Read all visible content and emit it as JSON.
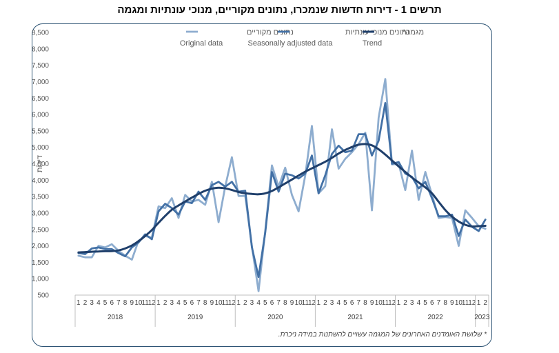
{
  "title": "תרשים 1 - דירות חדשות שנמכרו, נתונים מקוריים, מנוכי עונתיות ומגמה",
  "footnote": "* שלושת האומדנים האחרונים של המגמה עשויים להשתנות במידה ניכרת.",
  "chart_data": {
    "type": "line",
    "title": "תרשים 1 - דירות חדשות שנמכרו, נתונים מקוריים, מנוכי עונתיות ומגמה",
    "ylabel": "דירות",
    "xlabel": "",
    "ylim": [
      500,
      8500
    ],
    "yticks": [
      "500",
      "1,000",
      "1,500",
      "2,000",
      "2,500",
      "3,000",
      "3,500",
      "4,000",
      "4,500",
      "5,000",
      "5,500",
      "6,000",
      "6,500",
      "7,000",
      "7,500",
      "8,000",
      "8,500"
    ],
    "grid": false,
    "legend_position": "top",
    "x_month_labels": [
      "1",
      "2",
      "3",
      "4",
      "5",
      "6",
      "7",
      "8",
      "9",
      "10",
      "11",
      "12",
      "1",
      "2",
      "3",
      "4",
      "5",
      "6",
      "7",
      "8",
      "9",
      "10",
      "11",
      "12",
      "1",
      "2",
      "3",
      "4",
      "5",
      "6",
      "7",
      "8",
      "9",
      "10",
      "11",
      "12",
      "1",
      "2",
      "3",
      "4",
      "5",
      "6",
      "7",
      "8",
      "9",
      "10",
      "11",
      "12",
      "1",
      "2",
      "3",
      "4",
      "5",
      "6",
      "7",
      "8",
      "9",
      "10",
      "11",
      "12",
      "1",
      "2"
    ],
    "years": [
      {
        "label": "2018",
        "months": 12
      },
      {
        "label": "2019",
        "months": 12
      },
      {
        "label": "2020",
        "months": 12
      },
      {
        "label": "2021",
        "months": 12
      },
      {
        "label": "2022",
        "months": 12
      },
      {
        "label": "2023",
        "months": 2
      }
    ],
    "series": [
      {
        "name": "נתונים מקוריים",
        "name_en": "Original data",
        "color": "#8eadcf",
        "width": 2.8,
        "values": [
          1700,
          1650,
          1650,
          2000,
          1950,
          2050,
          1850,
          1700,
          1580,
          2150,
          2300,
          2250,
          3200,
          3150,
          3450,
          2850,
          3550,
          3350,
          3400,
          3250,
          3950,
          2720,
          3800,
          4700,
          3520,
          3520,
          1980,
          620,
          2450,
          4450,
          3800,
          4380,
          3550,
          3050,
          4150,
          5650,
          3600,
          3820,
          5550,
          4350,
          4650,
          4850,
          5100,
          5450,
          3080,
          5900,
          7080,
          4480,
          4500,
          3700,
          4900,
          3400,
          4250,
          3550,
          2850,
          2880,
          2850,
          2000,
          3080,
          2850,
          2600,
          2520
        ]
      },
      {
        "name": "נתונים מנוכי עונתיות",
        "name_en": "Seasonally adjusted data",
        "color": "#4371a6",
        "width": 2.8,
        "values": [
          1780,
          1750,
          1920,
          1950,
          1900,
          1900,
          1780,
          1680,
          1950,
          2100,
          2350,
          2200,
          3050,
          3280,
          3150,
          2950,
          3350,
          3300,
          3650,
          3400,
          3850,
          3950,
          3800,
          3950,
          3650,
          3680,
          1950,
          1050,
          2400,
          4250,
          3650,
          4200,
          4150,
          4050,
          4200,
          4750,
          3600,
          4150,
          4800,
          5050,
          4850,
          4900,
          5400,
          5400,
          4750,
          5200,
          6350,
          4500,
          4550,
          4200,
          4100,
          3750,
          3950,
          3450,
          2900,
          2900,
          2950,
          2300,
          2800,
          2580,
          2450,
          2800
        ]
      },
      {
        "name": "מגמה*",
        "name_en": "Trend",
        "color": "#1f3f6b",
        "width": 3,
        "values": [
          1800,
          1810,
          1820,
          1830,
          1835,
          1840,
          1860,
          1920,
          2010,
          2140,
          2300,
          2480,
          2700,
          2910,
          3100,
          3230,
          3350,
          3470,
          3580,
          3680,
          3740,
          3770,
          3750,
          3700,
          3640,
          3600,
          3580,
          3570,
          3600,
          3670,
          3780,
          3900,
          4020,
          4140,
          4260,
          4360,
          4460,
          4560,
          4680,
          4810,
          4920,
          5010,
          5080,
          5100,
          5060,
          4940,
          4780,
          4600,
          4420,
          4250,
          4080,
          3930,
          3780,
          3600,
          3340,
          3090,
          2890,
          2740,
          2640,
          2590,
          2600,
          2610
        ]
      }
    ]
  }
}
